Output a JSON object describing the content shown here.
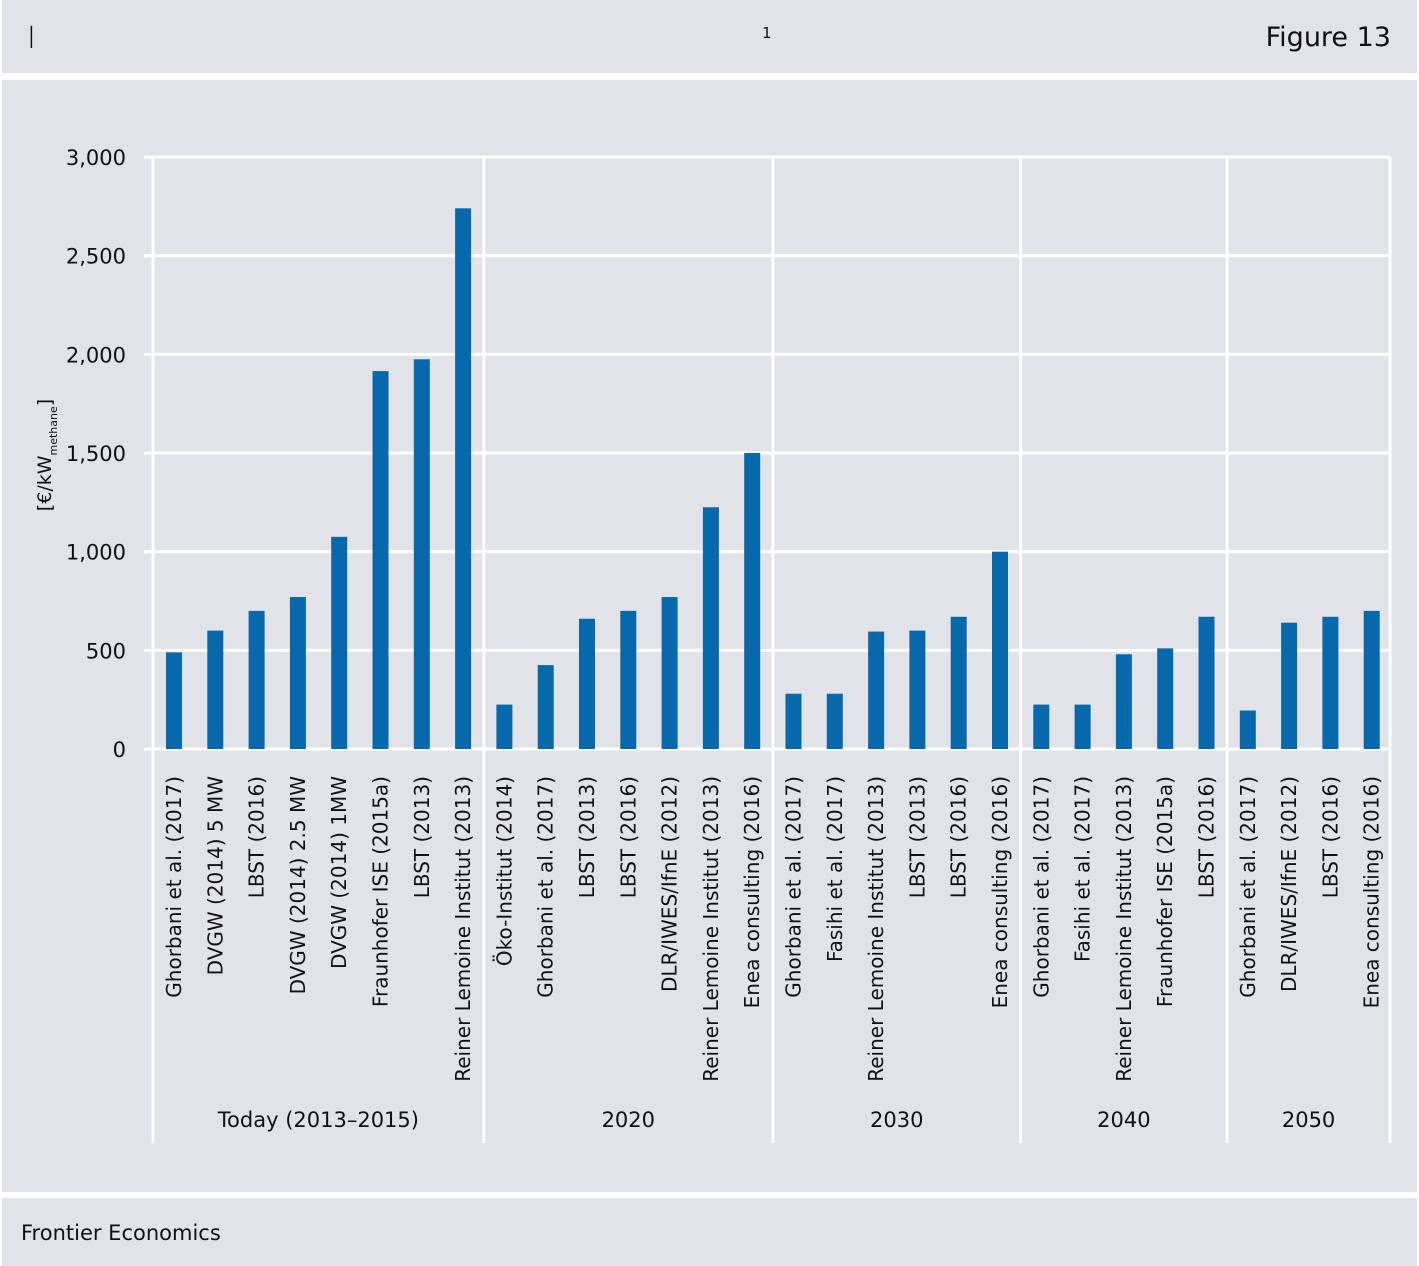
{
  "header": {
    "marker": "I",
    "footnote_number": "1",
    "figure_title": "Figure 13"
  },
  "footer": {
    "source": "Frontier Economics"
  },
  "colors": {
    "background_band": "#e2e3e8",
    "bar": "#0868ac",
    "grid": "#ffffff"
  },
  "chart_data": {
    "type": "bar",
    "title": "",
    "ylabel": {
      "prefix": "[€/kW",
      "subscript": "methane",
      "suffix": "]"
    },
    "ylim": [
      0,
      3000
    ],
    "yticks": [
      {
        "value": 0,
        "label": "0"
      },
      {
        "value": 500,
        "label": "500"
      },
      {
        "value": 1000,
        "label": "1,000"
      },
      {
        "value": 1500,
        "label": "1,500"
      },
      {
        "value": 2000,
        "label": "2,000"
      },
      {
        "value": 2500,
        "label": "2,500"
      },
      {
        "value": 3000,
        "label": "3,000"
      }
    ],
    "grid": true,
    "legend": "none",
    "groups": [
      {
        "label": "Today (2013–2015)",
        "bars": [
          {
            "label": "Ghorbani et al. (2017)",
            "value": 490
          },
          {
            "label": "DVGW (2014) 5 MW",
            "value": 600
          },
          {
            "label": "LBST (2016)",
            "value": 700
          },
          {
            "label": "DVGW (2014) 2.5 MW",
            "value": 770
          },
          {
            "label": "DVGW (2014) 1MW",
            "value": 1075
          },
          {
            "label": "Fraunhofer ISE (2015a)",
            "value": 1915
          },
          {
            "label": "LBST (2013)",
            "value": 1975
          },
          {
            "label": "Reiner Lemoine Institut (2013)",
            "value": 2740
          }
        ]
      },
      {
        "label": "2020",
        "bars": [
          {
            "label": "Öko-Institut (2014)",
            "value": 225
          },
          {
            "label": "Ghorbani et al. (2017)",
            "value": 425
          },
          {
            "label": "LBST (2013)",
            "value": 660
          },
          {
            "label": "LBST (2016)",
            "value": 700
          },
          {
            "label": "DLR/IWES/IfnE (2012)",
            "value": 770
          },
          {
            "label": "Reiner Lemoine Institut (2013)",
            "value": 1225
          },
          {
            "label": "Enea consulting (2016)",
            "value": 1500
          }
        ]
      },
      {
        "label": "2030",
        "bars": [
          {
            "label": "Ghorbani et al. (2017)",
            "value": 280
          },
          {
            "label": "Fasihi et al. (2017)",
            "value": 280
          },
          {
            "label": "Reiner Lemoine Institut (2013)",
            "value": 595
          },
          {
            "label": "LBST (2013)",
            "value": 600
          },
          {
            "label": "LBST (2016)",
            "value": 670
          },
          {
            "label": "Enea consulting (2016)",
            "value": 1000
          }
        ]
      },
      {
        "label": "2040",
        "bars": [
          {
            "label": "Ghorbani et al. (2017)",
            "value": 225
          },
          {
            "label": "Fasihi et al. (2017)",
            "value": 225
          },
          {
            "label": "Reiner Lemoine Institut (2013)",
            "value": 480
          },
          {
            "label": "Fraunhofer ISE (2015a)",
            "value": 510
          },
          {
            "label": "LBST (2016)",
            "value": 670
          }
        ]
      },
      {
        "label": "2050",
        "bars": [
          {
            "label": "Ghorbani et al. (2017)",
            "value": 195
          },
          {
            "label": "DLR/IWES/IfnE (2012)",
            "value": 640
          },
          {
            "label": "LBST (2016)",
            "value": 670
          },
          {
            "label": "Enea consulting (2016)",
            "value": 700
          }
        ]
      }
    ]
  }
}
